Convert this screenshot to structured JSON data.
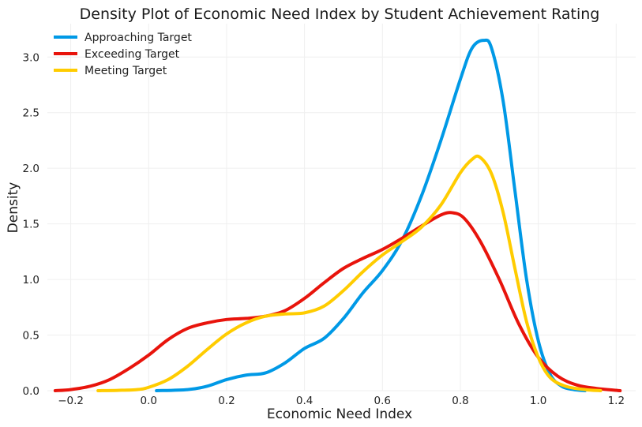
{
  "chart_data": {
    "type": "line",
    "title": "Density Plot of Economic Need Index by Student Achievement Rating",
    "xlabel": "Economic Need Index",
    "ylabel": "Density",
    "xlim": [
      -0.26,
      1.25
    ],
    "ylim": [
      0,
      3.3
    ],
    "x_ticks": [
      "−0.2",
      "0.0",
      "0.2",
      "0.4",
      "0.6",
      "0.8",
      "1.0",
      "1.2"
    ],
    "y_ticks": [
      "0.0",
      "0.5",
      "1.0",
      "1.5",
      "2.0",
      "2.5",
      "3.0"
    ],
    "grid": true,
    "legend_position": "top-left",
    "series": [
      {
        "name": "Approaching Target",
        "color": "#0099e6",
        "points": [
          [
            0.02,
            0.0
          ],
          [
            0.1,
            0.01
          ],
          [
            0.15,
            0.04
          ],
          [
            0.2,
            0.1
          ],
          [
            0.25,
            0.14
          ],
          [
            0.3,
            0.16
          ],
          [
            0.35,
            0.25
          ],
          [
            0.4,
            0.38
          ],
          [
            0.45,
            0.47
          ],
          [
            0.5,
            0.65
          ],
          [
            0.55,
            0.88
          ],
          [
            0.6,
            1.08
          ],
          [
            0.65,
            1.35
          ],
          [
            0.7,
            1.75
          ],
          [
            0.75,
            2.25
          ],
          [
            0.8,
            2.8
          ],
          [
            0.83,
            3.08
          ],
          [
            0.86,
            3.15
          ],
          [
            0.88,
            3.08
          ],
          [
            0.91,
            2.6
          ],
          [
            0.94,
            1.8
          ],
          [
            0.97,
            1.0
          ],
          [
            1.0,
            0.45
          ],
          [
            1.03,
            0.15
          ],
          [
            1.06,
            0.04
          ],
          [
            1.09,
            0.01
          ],
          [
            1.12,
            0.0
          ]
        ]
      },
      {
        "name": "Exceeding Target",
        "color": "#e8140c",
        "points": [
          [
            -0.24,
            0.0
          ],
          [
            -0.2,
            0.01
          ],
          [
            -0.15,
            0.04
          ],
          [
            -0.1,
            0.1
          ],
          [
            -0.05,
            0.2
          ],
          [
            0.0,
            0.32
          ],
          [
            0.05,
            0.46
          ],
          [
            0.1,
            0.56
          ],
          [
            0.15,
            0.61
          ],
          [
            0.2,
            0.64
          ],
          [
            0.25,
            0.65
          ],
          [
            0.3,
            0.67
          ],
          [
            0.35,
            0.72
          ],
          [
            0.4,
            0.83
          ],
          [
            0.45,
            0.97
          ],
          [
            0.5,
            1.1
          ],
          [
            0.55,
            1.19
          ],
          [
            0.6,
            1.27
          ],
          [
            0.65,
            1.37
          ],
          [
            0.7,
            1.48
          ],
          [
            0.75,
            1.58
          ],
          [
            0.78,
            1.6
          ],
          [
            0.81,
            1.55
          ],
          [
            0.85,
            1.35
          ],
          [
            0.9,
            1.0
          ],
          [
            0.95,
            0.6
          ],
          [
            1.0,
            0.3
          ],
          [
            1.05,
            0.13
          ],
          [
            1.1,
            0.05
          ],
          [
            1.15,
            0.02
          ],
          [
            1.21,
            0.0
          ]
        ]
      },
      {
        "name": "Meeting Target",
        "color": "#ffcc00",
        "points": [
          [
            -0.13,
            0.0
          ],
          [
            -0.08,
            0.003
          ],
          [
            -0.03,
            0.01
          ],
          [
            0.0,
            0.03
          ],
          [
            0.05,
            0.1
          ],
          [
            0.1,
            0.22
          ],
          [
            0.15,
            0.37
          ],
          [
            0.2,
            0.51
          ],
          [
            0.25,
            0.61
          ],
          [
            0.3,
            0.67
          ],
          [
            0.35,
            0.69
          ],
          [
            0.4,
            0.7
          ],
          [
            0.45,
            0.76
          ],
          [
            0.5,
            0.9
          ],
          [
            0.55,
            1.07
          ],
          [
            0.6,
            1.22
          ],
          [
            0.65,
            1.34
          ],
          [
            0.7,
            1.47
          ],
          [
            0.75,
            1.67
          ],
          [
            0.8,
            1.96
          ],
          [
            0.83,
            2.08
          ],
          [
            0.85,
            2.1
          ],
          [
            0.88,
            1.95
          ],
          [
            0.91,
            1.6
          ],
          [
            0.94,
            1.1
          ],
          [
            0.97,
            0.62
          ],
          [
            1.0,
            0.3
          ],
          [
            1.03,
            0.12
          ],
          [
            1.07,
            0.04
          ],
          [
            1.12,
            0.01
          ],
          [
            1.16,
            0.0
          ]
        ]
      }
    ]
  }
}
